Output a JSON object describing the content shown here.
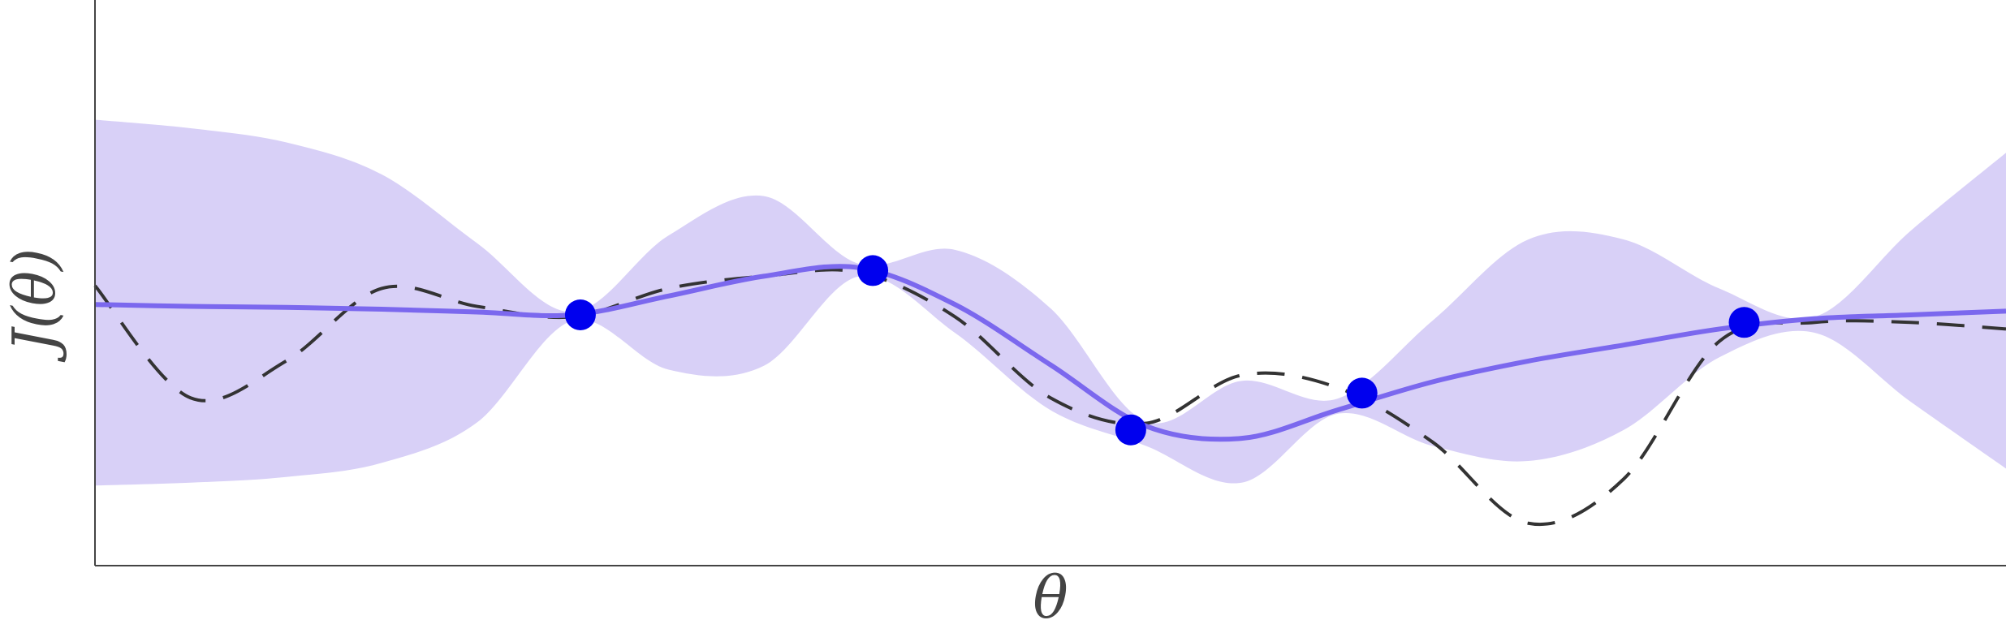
{
  "chart_data": {
    "type": "line",
    "x_label": "θ",
    "y_label": "J(θ)",
    "xlim": [
      0,
      10
    ],
    "ylim": [
      -3,
      3
    ],
    "x": [
      0,
      0.5,
      1,
      1.5,
      2,
      2.5,
      3,
      3.5,
      4,
      4.5,
      5,
      5.5,
      6,
      6.5,
      7,
      7.5,
      8,
      8.5,
      9,
      9.5,
      10
    ],
    "band": {
      "color": "#d8d0f7",
      "upper": [
        1.73,
        1.64,
        1.49,
        1.15,
        0.42,
        -0.31,
        0.5,
        0.92,
        0.2,
        0.35,
        -0.27,
        -1.47,
        -1.04,
        -1.23,
        -0.4,
        0.46,
        0.46,
        -0.06,
        -0.36,
        0.55,
        1.38
      ],
      "lower": [
        -2.15,
        -2.12,
        -2.06,
        -1.91,
        -1.48,
        -0.4,
        -0.92,
        -0.88,
        0.07,
        -0.53,
        -1.35,
        -1.73,
        -2.12,
        -1.39,
        -1.73,
        -1.89,
        -1.56,
        -0.79,
        -0.53,
        -1.26,
        -1.97
      ]
    },
    "series": [
      {
        "color": "#333333",
        "dashed": true,
        "values": [
          -0.03,
          -1.22,
          -0.83,
          -0.06,
          -0.25,
          -0.36,
          -0.06,
          0.07,
          0.11,
          -0.36,
          -1.22,
          -1.49,
          -0.98,
          -1.11,
          -1.69,
          -2.55,
          -2.08,
          -0.62,
          -0.42,
          -0.42,
          -0.49
        ]
      },
      {
        "color": "#7b68ee",
        "dashed": false,
        "values": [
          -0.23,
          -0.25,
          -0.26,
          -0.28,
          -0.31,
          -0.34,
          -0.14,
          0.07,
          0.16,
          -0.23,
          -0.87,
          -1.52,
          -1.65,
          -1.35,
          -1.05,
          -0.83,
          -0.66,
          -0.49,
          -0.38,
          -0.34,
          -0.3
        ]
      }
    ],
    "points": {
      "color": "#0000ee",
      "x": [
        2.54,
        4.07,
        5.42,
        6.63,
        8.63
      ],
      "y": [
        -0.34,
        0.13,
        -1.56,
        -1.17,
        -0.42
      ]
    }
  }
}
